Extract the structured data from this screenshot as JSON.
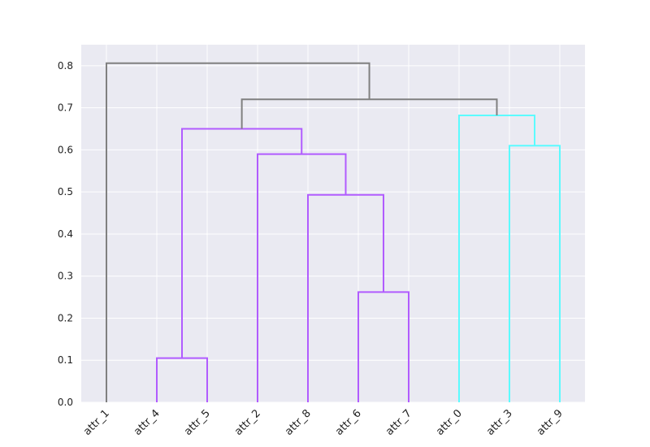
{
  "chart_data": {
    "type": "dendrogram",
    "title": "",
    "xlabel": "",
    "ylabel": "",
    "ylim": [
      0.0,
      0.85
    ],
    "yticks": [
      "0.0",
      "0.1",
      "0.2",
      "0.3",
      "0.4",
      "0.5",
      "0.6",
      "0.7",
      "0.8"
    ],
    "grid": true,
    "leaves": [
      "attr_1",
      "attr_4",
      "attr_5",
      "attr_2",
      "attr_8",
      "attr_6",
      "attr_7",
      "attr_0",
      "attr_3",
      "attr_9"
    ],
    "links": [
      {
        "left": "attr_4",
        "right": "attr_5",
        "height": 0.105,
        "color": "#b15cff"
      },
      {
        "left": "attr_6",
        "right": "attr_7",
        "height": 0.262,
        "color": "#b15cff"
      },
      {
        "left": "attr_8",
        "right": "(attr_6, attr_7)",
        "height": 0.493,
        "color": "#b15cff"
      },
      {
        "left": "attr_2",
        "right": "(attr_8, attr_6, attr_7)",
        "height": 0.59,
        "color": "#b15cff"
      },
      {
        "left": "(attr_4, attr_5)",
        "right": "(attr_2, attr_8, attr_6, attr_7)",
        "height": 0.65,
        "color": "#b15cff"
      },
      {
        "left": "attr_3",
        "right": "attr_9",
        "height": 0.61,
        "color": "#5cfbff"
      },
      {
        "left": "attr_0",
        "right": "(attr_3, attr_9)",
        "height": 0.682,
        "color": "#5cfbff"
      },
      {
        "left": "purple-cluster",
        "right": "cyan-cluster",
        "height": 0.72,
        "color": "#808080"
      },
      {
        "left": "attr_1",
        "right": "rest",
        "height": 0.806,
        "color": "#808080"
      }
    ],
    "colors": {
      "background": "#eaeaf2",
      "grid": "#ffffff",
      "purple": "#b15cff",
      "cyan": "#5cfbff",
      "gray": "#808080"
    }
  }
}
